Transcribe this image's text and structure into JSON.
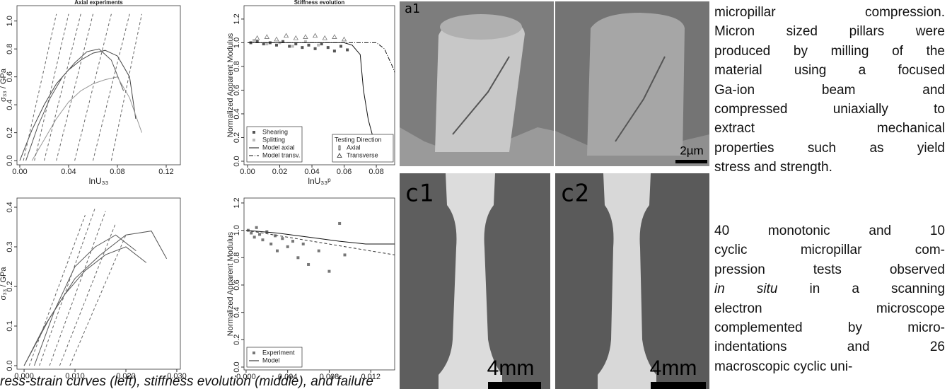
{
  "chart_data": [
    {
      "type": "line",
      "title": "Axial experiments",
      "xlabel": "lnU₃₃",
      "ylabel": "σ₃₃ / GPa",
      "xlim": [
        -0.0023,
        0.1316
      ],
      "ylim": [
        -0.03,
        1.11
      ],
      "xticks": [
        {
          "value": 0,
          "label": "0.00"
        },
        0.04,
        0.08,
        0.12
      ],
      "yticks": [
        {
          "value": 0,
          "label": "0.0"
        },
        0.2,
        0.4,
        0.6,
        0.8,
        {
          "value": 1,
          "label": "1.0"
        }
      ],
      "series": [
        {
          "color": "#444444",
          "style": "solid",
          "x": [
            0,
            0.01,
            0.02,
            0.03,
            0.04,
            0.05,
            0.06,
            0.07,
            0.08,
            0.09,
            0.095
          ],
          "values": [
            0,
            0.22,
            0.4,
            0.55,
            0.65,
            0.72,
            0.77,
            0.79,
            0.75,
            0.6,
            0.3
          ]
        },
        {
          "color": "#555555",
          "style": "solid",
          "x": [
            0.005,
            0.015,
            0.025,
            0.035,
            0.045,
            0.055,
            0.065,
            0.075,
            0.085
          ],
          "values": [
            0,
            0.25,
            0.45,
            0.6,
            0.7,
            0.78,
            0.8,
            0.72,
            0.5
          ]
        },
        {
          "color": "#999999",
          "style": "solid",
          "x": [
            0.01,
            0.02,
            0.03,
            0.04,
            0.05,
            0.06,
            0.07,
            0.08,
            0.09,
            0.1
          ],
          "values": [
            0,
            0.15,
            0.3,
            0.42,
            0.5,
            0.55,
            0.58,
            0.6,
            0.45,
            0.2
          ]
        },
        {
          "color": "#666666",
          "style": "dashed",
          "x": [
            0.003,
            0.03
          ],
          "values": [
            0,
            1.05
          ]
        },
        {
          "color": "#666666",
          "style": "dashed",
          "x": [
            0.012,
            0.04
          ],
          "values": [
            0,
            1.05
          ]
        },
        {
          "color": "#666666",
          "style": "dashed",
          "x": [
            0.02,
            0.05
          ],
          "values": [
            0,
            1.05
          ]
        },
        {
          "color": "#666666",
          "style": "dashed",
          "x": [
            0.03,
            0.06
          ],
          "values": [
            0,
            1.05
          ]
        },
        {
          "color": "#666666",
          "style": "dashed",
          "x": [
            0.045,
            0.075
          ],
          "values": [
            0,
            1.05
          ]
        },
        {
          "color": "#666666",
          "style": "dashed",
          "x": [
            0.06,
            0.09
          ],
          "values": [
            0,
            1.05
          ]
        },
        {
          "color": "#666666",
          "style": "dashed",
          "x": [
            0.075,
            0.1
          ],
          "values": [
            0,
            1.05
          ]
        }
      ]
    },
    {
      "type": "line",
      "title": "Stiffness evolution",
      "xlabel": "lnU₃₃ᵖ",
      "ylabel": "Normalized Apparent Modulus",
      "xlim": [
        -0.0022,
        0.0914
      ],
      "ylim": [
        -0.03,
        1.313
      ],
      "xticks": [
        {
          "value": 0,
          "label": "0.00"
        },
        0.02,
        0.04,
        0.06,
        0.08
      ],
      "yticks": [
        {
          "value": 0,
          "label": "0.0"
        },
        0.2,
        0.4,
        0.6,
        0.8,
        {
          "value": 1,
          "label": "1.0"
        },
        1.2
      ],
      "legend": "bottomleft",
      "legend2": {
        "title": "Testing Direction",
        "entries": [
          "Axial",
          "Transverse"
        ]
      },
      "series": [
        {
          "name": "Shearing",
          "color": "#555555",
          "style": "points",
          "marker": "square",
          "x": [
            0.002,
            0.006,
            0.01,
            0.014,
            0.018,
            0.022,
            0.026,
            0.03,
            0.034,
            0.038,
            0.042,
            0.046,
            0.05,
            0.054,
            0.058,
            0.062
          ],
          "values": [
            1,
            1.01,
            0.99,
            1,
            0.98,
            1.01,
            0.97,
            0.99,
            0.96,
            0.98,
            0.95,
            0.99,
            0.96,
            0.93,
            0.97,
            0.94
          ]
        },
        {
          "name": "Splitting",
          "color": "#bbbbbb",
          "style": "points",
          "marker": "square",
          "x": [
            0.004,
            0.012,
            0.02,
            0.028,
            0.036,
            0.044
          ],
          "values": [
            1.02,
            0.99,
            1,
            0.97,
            1.01,
            0.98
          ]
        },
        {
          "name": "Model axial",
          "color": "#111111",
          "style": "solid",
          "x": [
            0,
            0.06,
            0.065,
            0.07,
            0.072,
            0.075,
            0.078,
            0.08
          ],
          "values": [
            1,
            1,
            0.98,
            0.9,
            0.6,
            0.35,
            0.2,
            0.1
          ]
        },
        {
          "name": "Model transv.",
          "color": "#111111",
          "style": "dotdash",
          "x": [
            0,
            0.08,
            0.085,
            0.09,
            0.0914
          ],
          "values": [
            1,
            1,
            0.95,
            0.8,
            0.75
          ]
        },
        {
          "color": "#777777",
          "style": "points",
          "marker": "triangle",
          "x": [
            0.006,
            0.012,
            0.018,
            0.024,
            0.03,
            0.036,
            0.042,
            0.048,
            0.054,
            0.06
          ],
          "values": [
            1.04,
            1.05,
            1.03,
            1.06,
            1.04,
            1.05,
            1.06,
            1.04,
            1.05,
            1.03
          ]
        }
      ]
    },
    {
      "type": "line",
      "ylabel": "σ₃₃ / GPa",
      "xlim": [
        -0.0014,
        0.0307
      ],
      "ylim": [
        -0.0089,
        0.4232
      ],
      "xticks": [
        {
          "value": 0,
          "label": "0.000"
        },
        {
          "value": 0.01,
          "label": "0.010"
        },
        {
          "value": 0.02,
          "label": "0.020"
        },
        {
          "value": 0.03,
          "label": "0.030"
        }
      ],
      "yticks": [
        {
          "value": 0,
          "label": "0.0"
        },
        0.1,
        0.2,
        0.3,
        0.4
      ],
      "series": [
        {
          "color": "#555555",
          "style": "solid",
          "x": [
            0,
            0.005,
            0.01,
            0.015,
            0.02,
            0.025,
            0.028
          ],
          "values": [
            0,
            0.12,
            0.22,
            0.28,
            0.33,
            0.34,
            0.27
          ]
        },
        {
          "color": "#555555",
          "style": "solid",
          "x": [
            0.002,
            0.006,
            0.01,
            0.014,
            0.018,
            0.022
          ],
          "values": [
            0,
            0.14,
            0.25,
            0.3,
            0.33,
            0.29
          ]
        },
        {
          "color": "#555555",
          "style": "solid",
          "x": [
            0,
            0.004,
            0.008,
            0.012,
            0.016,
            0.02,
            0.024
          ],
          "values": [
            0,
            0.1,
            0.18,
            0.24,
            0.28,
            0.3,
            0.26
          ]
        },
        {
          "color": "#666666",
          "style": "dashed",
          "x": [
            0.001,
            0.012
          ],
          "values": [
            0,
            0.38
          ]
        },
        {
          "color": "#666666",
          "style": "dashed",
          "x": [
            0.003,
            0.014
          ],
          "values": [
            0,
            0.4
          ]
        },
        {
          "color": "#666666",
          "style": "dashed",
          "x": [
            0.005,
            0.016
          ],
          "values": [
            0,
            0.39
          ]
        },
        {
          "color": "#666666",
          "style": "dashed",
          "x": [
            0.007,
            0.018
          ],
          "values": [
            0,
            0.36
          ]
        },
        {
          "color": "#666666",
          "style": "dashed",
          "x": [
            0.009,
            0.02
          ],
          "values": [
            0,
            0.33
          ]
        }
      ]
    },
    {
      "type": "line",
      "ylabel": "Normalized Apparent Modulus",
      "xlim": [
        -0.0002,
        0.0143
      ],
      "ylim": [
        -0.0207,
        1.236
      ],
      "xticks": [
        {
          "value": 0,
          "label": "0.000"
        },
        0.004,
        0.008,
        0.012
      ],
      "yticks": [
        {
          "value": 0,
          "label": "0.0"
        },
        0.2,
        0.4,
        0.6,
        0.8,
        {
          "value": 1,
          "label": "1.0"
        },
        1.2
      ],
      "legend": "bottomleft",
      "series": [
        {
          "name": "Experiment",
          "color": "#777777",
          "style": "points",
          "marker": "square",
          "x": [
            0.0002,
            0.0005,
            0.0008,
            0.001,
            0.0013,
            0.0016,
            0.002,
            0.0024,
            0.0028,
            0.003,
            0.0035,
            0.004,
            0.0045,
            0.005,
            0.0055,
            0.006,
            0.007,
            0.008,
            0.009,
            0.0095
          ],
          "values": [
            1,
            0.98,
            0.95,
            1.02,
            0.97,
            0.93,
            0.99,
            0.9,
            0.96,
            0.85,
            0.94,
            0.88,
            0.92,
            0.8,
            0.9,
            0.75,
            0.85,
            0.7,
            1.05,
            0.82
          ]
        },
        {
          "name": "Model",
          "color": "#111111",
          "style": "solid",
          "x": [
            0,
            0.003,
            0.006,
            0.009,
            0.0115,
            0.0143
          ],
          "values": [
            1,
            0.98,
            0.95,
            0.92,
            0.9,
            0.9
          ]
        },
        {
          "color": "#333333",
          "style": "dashed",
          "x": [
            0,
            0.0143
          ],
          "values": [
            1,
            0.82
          ]
        }
      ]
    }
  ],
  "images": [
    {
      "label": "a1",
      "scale": "2µm"
    },
    {
      "label": "c1",
      "scale": "4mm"
    },
    {
      "label": "c2",
      "scale": "4mm"
    }
  ],
  "text": {
    "paragraphs": [
      {
        "lines": [
          "micropillar compression.",
          "Micron sized pillars were",
          "produced by milling of the",
          "material using a focused",
          "Ga-ion beam and",
          "compressed uniaxially to",
          "extract mechanical",
          "properties such as yield",
          "stress and strength."
        ]
      },
      {
        "lines": [
          "40 monotonic and 10",
          "cyclic micropillar com-",
          "pression tests observed",
          {
            "italic": "in situ",
            "rest": "in a scanning"
          },
          "electron microscope",
          "complemented by micro-",
          "indentations and 26",
          "macroscopic cyclic uni-"
        ]
      }
    ]
  },
  "caption": "ress-strain curves (left), stiffness evolution (middle), and failure"
}
